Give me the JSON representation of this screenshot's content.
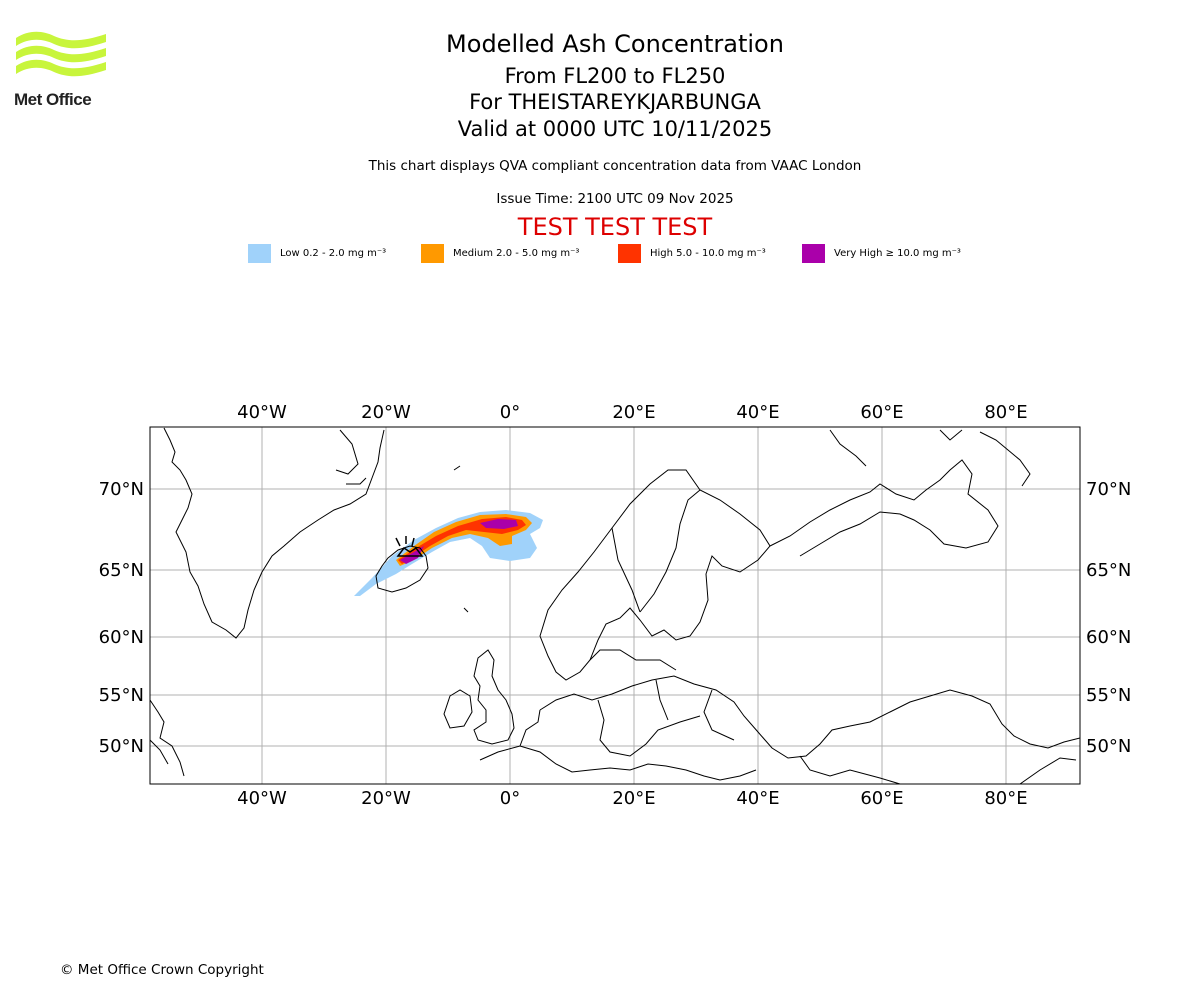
{
  "header": {
    "logo_text": "Met Office",
    "title": "Modelled Ash Concentration",
    "level_range": "From FL200 to FL250",
    "volcano": "For THEISTAREYKJARBUNGA",
    "valid_time": "Valid at 0000 UTC 10/11/2025",
    "description": "This chart displays QVA compliant concentration data from VAAC London",
    "issue_time": "Issue Time: 2100 UTC 09 Nov 2025",
    "test_banner": "TEST TEST TEST"
  },
  "legend": [
    {
      "label": "Low 0.2 - 2.0 mg m⁻³",
      "color": "#a0d2fa"
    },
    {
      "label": "Medium 2.0 - 5.0 mg m⁻³",
      "color": "#ff9900"
    },
    {
      "label": "High 5.0 - 10.0 mg m⁻³",
      "color": "#ff3300"
    },
    {
      "label": "Very High ≥ 10.0 mg m⁻³",
      "color": "#aa00aa"
    }
  ],
  "map": {
    "lon_ticks": [
      "40°W",
      "20°W",
      "0°",
      "20°E",
      "40°E",
      "60°E",
      "80°E"
    ],
    "lat_ticks": [
      "70°N",
      "65°N",
      "60°N",
      "55°N",
      "50°N"
    ],
    "colors": {
      "low": "#a0d2fa",
      "medium": "#ff9900",
      "high": "#ff3300",
      "very_high": "#aa00aa",
      "grid": "#b0b0b0",
      "land": "#000000"
    }
  },
  "footer": {
    "copyright": "© Met Office Crown Copyright"
  }
}
